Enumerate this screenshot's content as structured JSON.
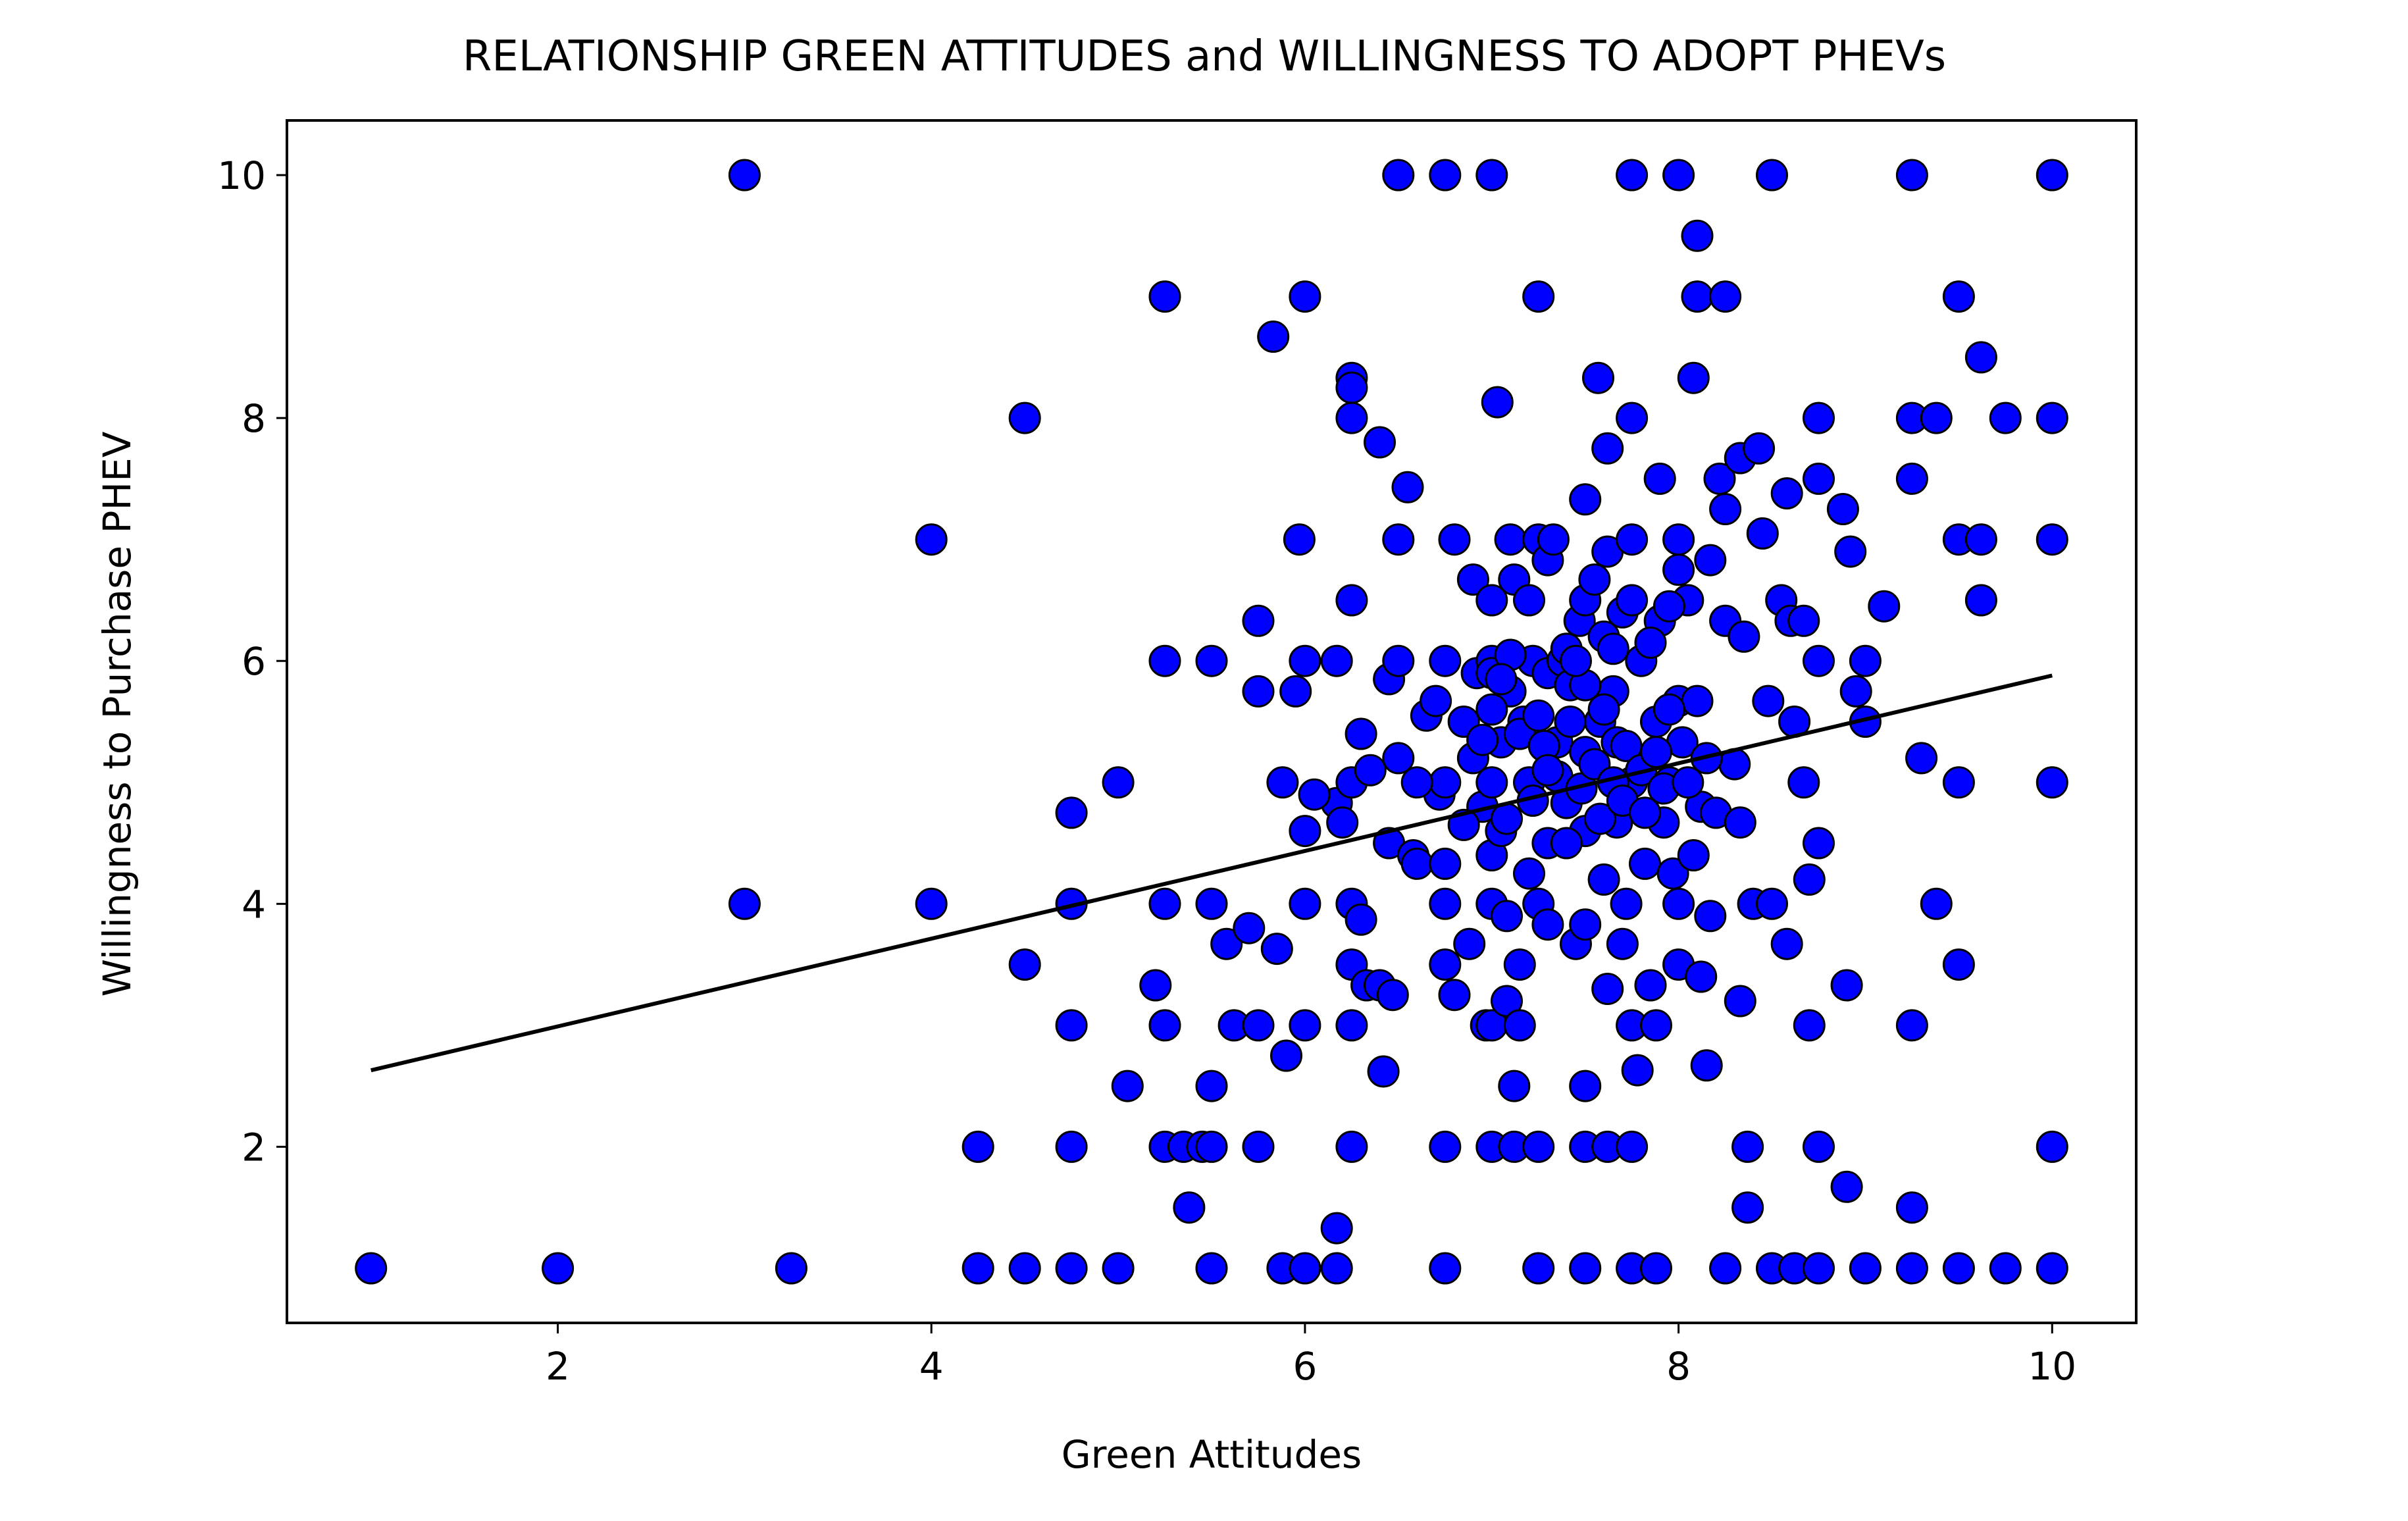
{
  "chart_data": {
    "type": "scatter",
    "title": "RELATIONSHIP GREEN ATTITUDES and WILLINGNESS TO ADOPT PHEVs",
    "xlabel": "Green Attitudes",
    "ylabel": "Willingness to Purchase PHEV",
    "xlim": [
      0.55,
      10.45
    ],
    "ylim": [
      0.55,
      10.45
    ],
    "xticks": [
      2,
      4,
      6,
      8,
      10
    ],
    "yticks": [
      2,
      4,
      6,
      8,
      10
    ],
    "grid": false,
    "marker_color": "#0000ff",
    "marker_edge_color": "#000000",
    "trendline_color": "#000000",
    "trendline": {
      "x": [
        1,
        10
      ],
      "y": [
        2.63,
        5.88
      ]
    },
    "points": [
      [
        1,
        1
      ],
      [
        2,
        1
      ],
      [
        3,
        10
      ],
      [
        3,
        4
      ],
      [
        3.25,
        1
      ],
      [
        4,
        7
      ],
      [
        4,
        4
      ],
      [
        4.25,
        2
      ],
      [
        4.25,
        1
      ],
      [
        4.5,
        8
      ],
      [
        4.5,
        3.5
      ],
      [
        4.5,
        1
      ],
      [
        4.75,
        4.75
      ],
      [
        4.75,
        4
      ],
      [
        4.75,
        3
      ],
      [
        4.75,
        2
      ],
      [
        4.75,
        1
      ],
      [
        5,
        5
      ],
      [
        5,
        1
      ],
      [
        5.05,
        2.5
      ],
      [
        5.2,
        3.33
      ],
      [
        5.25,
        9
      ],
      [
        5.25,
        6
      ],
      [
        5.25,
        4
      ],
      [
        5.25,
        3
      ],
      [
        5.25,
        2
      ],
      [
        5.35,
        2
      ],
      [
        5.38,
        1.5
      ],
      [
        5.45,
        2
      ],
      [
        5.5,
        6
      ],
      [
        5.5,
        4
      ],
      [
        5.5,
        2.5
      ],
      [
        5.5,
        2
      ],
      [
        5.5,
        1
      ],
      [
        5.58,
        3.67
      ],
      [
        5.62,
        3
      ],
      [
        5.7,
        3.8
      ],
      [
        5.75,
        6.33
      ],
      [
        5.75,
        5.75
      ],
      [
        5.75,
        3
      ],
      [
        5.75,
        2
      ],
      [
        5.83,
        8.67
      ],
      [
        5.85,
        3.63
      ],
      [
        5.88,
        5
      ],
      [
        5.9,
        2.75
      ],
      [
        5.88,
        1
      ],
      [
        5.95,
        5.75
      ],
      [
        5.97,
        7
      ],
      [
        6,
        9
      ],
      [
        6,
        6
      ],
      [
        6,
        4.6
      ],
      [
        6,
        4
      ],
      [
        6,
        3
      ],
      [
        6,
        1
      ],
      [
        6.17,
        1
      ],
      [
        6.17,
        1.33
      ],
      [
        6.17,
        6
      ],
      [
        6.17,
        4.83
      ],
      [
        6.2,
        4.67
      ],
      [
        6.25,
        8.33
      ],
      [
        6.25,
        8.25
      ],
      [
        6.25,
        8
      ],
      [
        6.25,
        6.5
      ],
      [
        6.25,
        5
      ],
      [
        6.25,
        4
      ],
      [
        6.25,
        3.5
      ],
      [
        6.25,
        3
      ],
      [
        6.25,
        2
      ],
      [
        6.3,
        5.4
      ],
      [
        6.3,
        3.87
      ],
      [
        6.33,
        3.33
      ],
      [
        6.4,
        7.8
      ],
      [
        6.4,
        3.33
      ],
      [
        6.42,
        2.62
      ],
      [
        6.45,
        5.85
      ],
      [
        6.45,
        4.5
      ],
      [
        6.47,
        3.25
      ],
      [
        6.5,
        10
      ],
      [
        6.5,
        7
      ],
      [
        6.5,
        6
      ],
      [
        6.5,
        5.2
      ],
      [
        6.55,
        7.43
      ],
      [
        6.58,
        4.4
      ],
      [
        6.6,
        4.33
      ],
      [
        6.65,
        5.55
      ],
      [
        6.7,
        5.67
      ],
      [
        6.72,
        4.9
      ],
      [
        6.75,
        10
      ],
      [
        6.75,
        6
      ],
      [
        6.75,
        5
      ],
      [
        6.75,
        4.33
      ],
      [
        6.75,
        4
      ],
      [
        6.75,
        3.5
      ],
      [
        6.75,
        2
      ],
      [
        6.75,
        1
      ],
      [
        6.8,
        7
      ],
      [
        6.8,
        3.25
      ],
      [
        6.85,
        5.5
      ],
      [
        6.88,
        3.67
      ],
      [
        6.9,
        6.67
      ],
      [
        6.92,
        5.9
      ],
      [
        6.95,
        4.8
      ],
      [
        6.97,
        3
      ],
      [
        7,
        10
      ],
      [
        7,
        6.5
      ],
      [
        7,
        6
      ],
      [
        7,
        5.9
      ],
      [
        7,
        5
      ],
      [
        7,
        4.4
      ],
      [
        7,
        4
      ],
      [
        7,
        3
      ],
      [
        7,
        2
      ],
      [
        7.03,
        8.13
      ],
      [
        7.05,
        5.33
      ],
      [
        7.05,
        4.6
      ],
      [
        7.08,
        3.9
      ],
      [
        7.08,
        3.2
      ],
      [
        7.1,
        7
      ],
      [
        7.1,
        5.75
      ],
      [
        7.12,
        6.67
      ],
      [
        7.12,
        2.5
      ],
      [
        7.12,
        2
      ],
      [
        7.15,
        3.5
      ],
      [
        7.15,
        3
      ],
      [
        7.17,
        5.5
      ],
      [
        7.2,
        5
      ],
      [
        7.2,
        4.25
      ],
      [
        7.22,
        6
      ],
      [
        7.25,
        9
      ],
      [
        7.25,
        7
      ],
      [
        7.25,
        4
      ],
      [
        7.25,
        2
      ],
      [
        7.25,
        1
      ],
      [
        7.3,
        6.83
      ],
      [
        7.3,
        5.9
      ],
      [
        7.3,
        4.5
      ],
      [
        7.3,
        3.83
      ],
      [
        7.33,
        7
      ],
      [
        7.35,
        5.33
      ],
      [
        7.38,
        6
      ],
      [
        7.4,
        4.83
      ],
      [
        7.42,
        5.8
      ],
      [
        7.45,
        3.67
      ],
      [
        7.47,
        6.33
      ],
      [
        7.5,
        7.33
      ],
      [
        7.5,
        6.5
      ],
      [
        7.5,
        5.25
      ],
      [
        7.5,
        4.6
      ],
      [
        7.5,
        3.83
      ],
      [
        7.5,
        2.5
      ],
      [
        7.5,
        2
      ],
      [
        7.5,
        1
      ],
      [
        7.55,
        6.67
      ],
      [
        7.57,
        8.33
      ],
      [
        7.58,
        5.5
      ],
      [
        7.6,
        6.2
      ],
      [
        7.6,
        4.2
      ],
      [
        7.62,
        7.75
      ],
      [
        7.62,
        6.9
      ],
      [
        7.62,
        3.3
      ],
      [
        7.62,
        2
      ],
      [
        7.65,
        5.75
      ],
      [
        7.67,
        5.33
      ],
      [
        7.67,
        4.67
      ],
      [
        7.7,
        6.4
      ],
      [
        7.7,
        3.67
      ],
      [
        7.72,
        4
      ],
      [
        7.75,
        10
      ],
      [
        7.75,
        8
      ],
      [
        7.75,
        7
      ],
      [
        7.75,
        6.5
      ],
      [
        7.75,
        5
      ],
      [
        7.75,
        3
      ],
      [
        7.75,
        2
      ],
      [
        7.75,
        1
      ],
      [
        7.78,
        2.63
      ],
      [
        7.8,
        6
      ],
      [
        7.82,
        4.33
      ],
      [
        7.85,
        3.33
      ],
      [
        7.88,
        5.5
      ],
      [
        7.88,
        3
      ],
      [
        7.88,
        1
      ],
      [
        7.9,
        7.5
      ],
      [
        7.9,
        6.33
      ],
      [
        7.92,
        4.67
      ],
      [
        7.95,
        5
      ],
      [
        7.97,
        4.25
      ],
      [
        8,
        10
      ],
      [
        8,
        7
      ],
      [
        8,
        6.75
      ],
      [
        8,
        5.67
      ],
      [
        8,
        4
      ],
      [
        8,
        3.5
      ],
      [
        8.02,
        5.33
      ],
      [
        8.05,
        6.5
      ],
      [
        8.08,
        8.33
      ],
      [
        8.1,
        9.5
      ],
      [
        8.1,
        9
      ],
      [
        8.1,
        5.67
      ],
      [
        8.12,
        4.8
      ],
      [
        8.12,
        3.4
      ],
      [
        8.15,
        2.67
      ],
      [
        8.17,
        6.83
      ],
      [
        8.17,
        3.9
      ],
      [
        8.2,
        4.75
      ],
      [
        8.22,
        7.5
      ],
      [
        8.25,
        9
      ],
      [
        8.25,
        7.25
      ],
      [
        8.25,
        6.33
      ],
      [
        8.25,
        1
      ],
      [
        8.3,
        5.15
      ],
      [
        8.33,
        7.67
      ],
      [
        8.33,
        4.67
      ],
      [
        8.33,
        3.2
      ],
      [
        8.35,
        6.2
      ],
      [
        8.37,
        2
      ],
      [
        8.37,
        1.5
      ],
      [
        8.4,
        4
      ],
      [
        8.43,
        7.75
      ],
      [
        8.45,
        7.05
      ],
      [
        8.48,
        5.67
      ],
      [
        8.5,
        10
      ],
      [
        8.5,
        4
      ],
      [
        8.5,
        1
      ],
      [
        8.55,
        6.5
      ],
      [
        8.58,
        7.38
      ],
      [
        8.58,
        3.67
      ],
      [
        8.6,
        6.33
      ],
      [
        8.62,
        5.5
      ],
      [
        8.62,
        1
      ],
      [
        8.67,
        6.33
      ],
      [
        8.67,
        5
      ],
      [
        8.7,
        4.2
      ],
      [
        8.7,
        3
      ],
      [
        8.75,
        8
      ],
      [
        8.75,
        7.5
      ],
      [
        8.75,
        6
      ],
      [
        8.75,
        4.5
      ],
      [
        8.75,
        2
      ],
      [
        8.75,
        1
      ],
      [
        8.88,
        7.25
      ],
      [
        8.9,
        3.33
      ],
      [
        8.9,
        1.67
      ],
      [
        8.92,
        6.9
      ],
      [
        8.95,
        5.75
      ],
      [
        9,
        6
      ],
      [
        9,
        5.5
      ],
      [
        9,
        1
      ],
      [
        9.1,
        6.45
      ],
      [
        9.25,
        10
      ],
      [
        9.25,
        8
      ],
      [
        9.25,
        7.5
      ],
      [
        9.25,
        3
      ],
      [
        9.25,
        1.5
      ],
      [
        9.25,
        1
      ],
      [
        9.3,
        5.2
      ],
      [
        9.38,
        8
      ],
      [
        9.38,
        4
      ],
      [
        9.5,
        9
      ],
      [
        9.5,
        7
      ],
      [
        9.5,
        5
      ],
      [
        9.5,
        3.5
      ],
      [
        9.5,
        1
      ],
      [
        9.62,
        8.5
      ],
      [
        9.62,
        7
      ],
      [
        9.62,
        6.5
      ],
      [
        9.75,
        8
      ],
      [
        9.75,
        1
      ],
      [
        10,
        10
      ],
      [
        10,
        8
      ],
      [
        10,
        7
      ],
      [
        10,
        5
      ],
      [
        10,
        2
      ],
      [
        10,
        1
      ],
      [
        6.05,
        4.9
      ],
      [
        6.35,
        5.1
      ],
      [
        6.6,
        5
      ],
      [
        6.9,
        5.2
      ],
      [
        7.0,
        5.6
      ],
      [
        7.08,
        4.7
      ],
      [
        7.15,
        5.4
      ],
      [
        7.22,
        4.85
      ],
      [
        7.28,
        5.3
      ],
      [
        7.35,
        5.05
      ],
      [
        7.4,
        4.5
      ],
      [
        7.42,
        5.5
      ],
      [
        7.48,
        4.95
      ],
      [
        7.55,
        5.15
      ],
      [
        7.58,
        4.7
      ],
      [
        7.65,
        5.0
      ],
      [
        7.7,
        4.85
      ],
      [
        7.72,
        5.3
      ],
      [
        7.8,
        5.1
      ],
      [
        7.82,
        4.75
      ],
      [
        7.88,
        5.25
      ],
      [
        7.92,
        4.95
      ],
      [
        7.95,
        5.6
      ],
      [
        8.05,
        5.0
      ],
      [
        8.08,
        4.4
      ],
      [
        8.15,
        5.2
      ],
      [
        7.3,
        5.1
      ],
      [
        7.5,
        5.8
      ],
      [
        7.6,
        5.6
      ],
      [
        7.4,
        6.1
      ],
      [
        7.25,
        5.55
      ],
      [
        7.1,
        6.05
      ],
      [
        6.95,
        5.35
      ],
      [
        6.85,
        4.65
      ],
      [
        7.05,
        5.85
      ],
      [
        7.2,
        6.5
      ],
      [
        7.45,
        6.0
      ],
      [
        7.65,
        6.1
      ],
      [
        7.85,
        6.15
      ],
      [
        7.95,
        6.45
      ]
    ]
  }
}
